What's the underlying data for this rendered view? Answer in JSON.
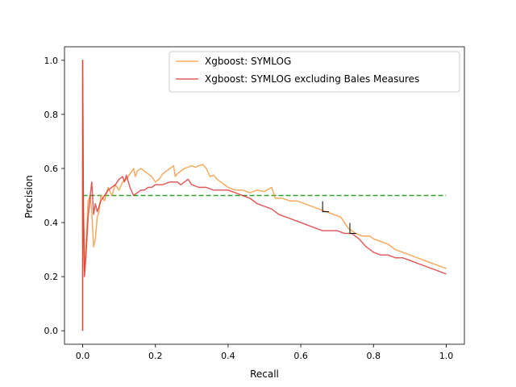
{
  "chart_data": {
    "type": "line",
    "title": "",
    "xlabel": "Recall",
    "ylabel": "Precision",
    "xlim": [
      -0.05,
      1.05
    ],
    "ylim": [
      -0.05,
      1.05
    ],
    "xticks": [
      0.0,
      0.2,
      0.4,
      0.6,
      0.8,
      1.0
    ],
    "yticks": [
      0.0,
      0.2,
      0.4,
      0.6,
      0.8,
      1.0
    ],
    "xtick_labels": [
      "0.0",
      "0.2",
      "0.4",
      "0.6",
      "0.8",
      "1.0"
    ],
    "ytick_labels": [
      "0.0",
      "0.2",
      "0.4",
      "0.6",
      "0.8",
      "1.0"
    ],
    "grid": false,
    "legend_position": "top-right",
    "series": [
      {
        "name": "Xgboost: SYMLOG",
        "color": "#f28e2b",
        "points": [
          [
            0.0,
            0.0
          ],
          [
            0.0,
            1.0
          ],
          [
            0.002,
            0.5
          ],
          [
            0.005,
            0.22
          ],
          [
            0.01,
            0.34
          ],
          [
            0.015,
            0.48
          ],
          [
            0.02,
            0.5
          ],
          [
            0.025,
            0.44
          ],
          [
            0.03,
            0.31
          ],
          [
            0.035,
            0.34
          ],
          [
            0.04,
            0.42
          ],
          [
            0.045,
            0.44
          ],
          [
            0.05,
            0.5
          ],
          [
            0.06,
            0.48
          ],
          [
            0.07,
            0.53
          ],
          [
            0.08,
            0.5
          ],
          [
            0.09,
            0.54
          ],
          [
            0.1,
            0.52
          ],
          [
            0.11,
            0.55
          ],
          [
            0.12,
            0.56
          ],
          [
            0.13,
            0.58
          ],
          [
            0.14,
            0.6
          ],
          [
            0.145,
            0.57
          ],
          [
            0.15,
            0.59
          ],
          [
            0.16,
            0.6
          ],
          [
            0.17,
            0.59
          ],
          [
            0.18,
            0.58
          ],
          [
            0.19,
            0.57
          ],
          [
            0.2,
            0.55
          ],
          [
            0.21,
            0.56
          ],
          [
            0.22,
            0.58
          ],
          [
            0.23,
            0.59
          ],
          [
            0.24,
            0.6
          ],
          [
            0.25,
            0.61
          ],
          [
            0.255,
            0.57
          ],
          [
            0.26,
            0.58
          ],
          [
            0.27,
            0.59
          ],
          [
            0.28,
            0.6
          ],
          [
            0.29,
            0.605
          ],
          [
            0.3,
            0.61
          ],
          [
            0.31,
            0.605
          ],
          [
            0.32,
            0.61
          ],
          [
            0.33,
            0.615
          ],
          [
            0.34,
            0.6
          ],
          [
            0.35,
            0.57
          ],
          [
            0.36,
            0.575
          ],
          [
            0.37,
            0.56
          ],
          [
            0.38,
            0.55
          ],
          [
            0.39,
            0.54
          ],
          [
            0.4,
            0.53
          ],
          [
            0.42,
            0.52
          ],
          [
            0.44,
            0.52
          ],
          [
            0.46,
            0.51
          ],
          [
            0.48,
            0.52
          ],
          [
            0.5,
            0.515
          ],
          [
            0.52,
            0.53
          ],
          [
            0.53,
            0.49
          ],
          [
            0.55,
            0.49
          ],
          [
            0.57,
            0.48
          ],
          [
            0.59,
            0.48
          ],
          [
            0.61,
            0.47
          ],
          [
            0.63,
            0.46
          ],
          [
            0.65,
            0.45
          ],
          [
            0.67,
            0.44
          ],
          [
            0.69,
            0.43
          ],
          [
            0.71,
            0.42
          ],
          [
            0.73,
            0.38
          ],
          [
            0.75,
            0.36
          ],
          [
            0.77,
            0.35
          ],
          [
            0.79,
            0.35
          ],
          [
            0.8,
            0.34
          ],
          [
            0.82,
            0.33
          ],
          [
            0.84,
            0.32
          ],
          [
            0.86,
            0.3
          ],
          [
            0.88,
            0.29
          ],
          [
            0.9,
            0.28
          ],
          [
            0.92,
            0.27
          ],
          [
            0.94,
            0.26
          ],
          [
            0.96,
            0.25
          ],
          [
            0.98,
            0.24
          ],
          [
            1.0,
            0.23
          ]
        ]
      },
      {
        "name": "Xgboost: SYMLOG excluding Bales Measures",
        "color": "#d62728",
        "points": [
          [
            0.0,
            0.0
          ],
          [
            0.0,
            1.0
          ],
          [
            0.002,
            0.45
          ],
          [
            0.005,
            0.2
          ],
          [
            0.01,
            0.3
          ],
          [
            0.015,
            0.42
          ],
          [
            0.02,
            0.49
          ],
          [
            0.025,
            0.55
          ],
          [
            0.03,
            0.43
          ],
          [
            0.035,
            0.47
          ],
          [
            0.04,
            0.44
          ],
          [
            0.05,
            0.48
          ],
          [
            0.06,
            0.5
          ],
          [
            0.07,
            0.52
          ],
          [
            0.08,
            0.53
          ],
          [
            0.09,
            0.54
          ],
          [
            0.1,
            0.56
          ],
          [
            0.11,
            0.57
          ],
          [
            0.115,
            0.55
          ],
          [
            0.12,
            0.575
          ],
          [
            0.13,
            0.53
          ],
          [
            0.14,
            0.5
          ],
          [
            0.15,
            0.51
          ],
          [
            0.16,
            0.52
          ],
          [
            0.17,
            0.52
          ],
          [
            0.18,
            0.53
          ],
          [
            0.19,
            0.53
          ],
          [
            0.2,
            0.54
          ],
          [
            0.22,
            0.54
          ],
          [
            0.24,
            0.55
          ],
          [
            0.26,
            0.55
          ],
          [
            0.27,
            0.54
          ],
          [
            0.28,
            0.55
          ],
          [
            0.29,
            0.56
          ],
          [
            0.3,
            0.54
          ],
          [
            0.32,
            0.53
          ],
          [
            0.34,
            0.53
          ],
          [
            0.36,
            0.52
          ],
          [
            0.38,
            0.52
          ],
          [
            0.4,
            0.52
          ],
          [
            0.42,
            0.51
          ],
          [
            0.44,
            0.5
          ],
          [
            0.46,
            0.49
          ],
          [
            0.48,
            0.47
          ],
          [
            0.5,
            0.46
          ],
          [
            0.52,
            0.45
          ],
          [
            0.54,
            0.43
          ],
          [
            0.56,
            0.42
          ],
          [
            0.58,
            0.41
          ],
          [
            0.6,
            0.4
          ],
          [
            0.62,
            0.39
          ],
          [
            0.64,
            0.38
          ],
          [
            0.66,
            0.37
          ],
          [
            0.68,
            0.37
          ],
          [
            0.7,
            0.37
          ],
          [
            0.72,
            0.36
          ],
          [
            0.74,
            0.36
          ],
          [
            0.76,
            0.34
          ],
          [
            0.78,
            0.31
          ],
          [
            0.8,
            0.29
          ],
          [
            0.82,
            0.28
          ],
          [
            0.84,
            0.28
          ],
          [
            0.86,
            0.27
          ],
          [
            0.88,
            0.27
          ],
          [
            0.9,
            0.26
          ],
          [
            0.92,
            0.25
          ],
          [
            0.94,
            0.24
          ],
          [
            0.96,
            0.23
          ],
          [
            0.98,
            0.22
          ],
          [
            1.0,
            0.21
          ]
        ]
      }
    ],
    "reference_line": {
      "color": "#2ca02c",
      "style": "dashed",
      "y": 0.5,
      "x_range": [
        0.0,
        1.0
      ]
    },
    "markers": [
      {
        "x": 0.66,
        "y": 0.44,
        "shape": "corner",
        "color": "#000000"
      },
      {
        "x": 0.735,
        "y": 0.36,
        "shape": "corner",
        "color": "#000000"
      }
    ]
  }
}
